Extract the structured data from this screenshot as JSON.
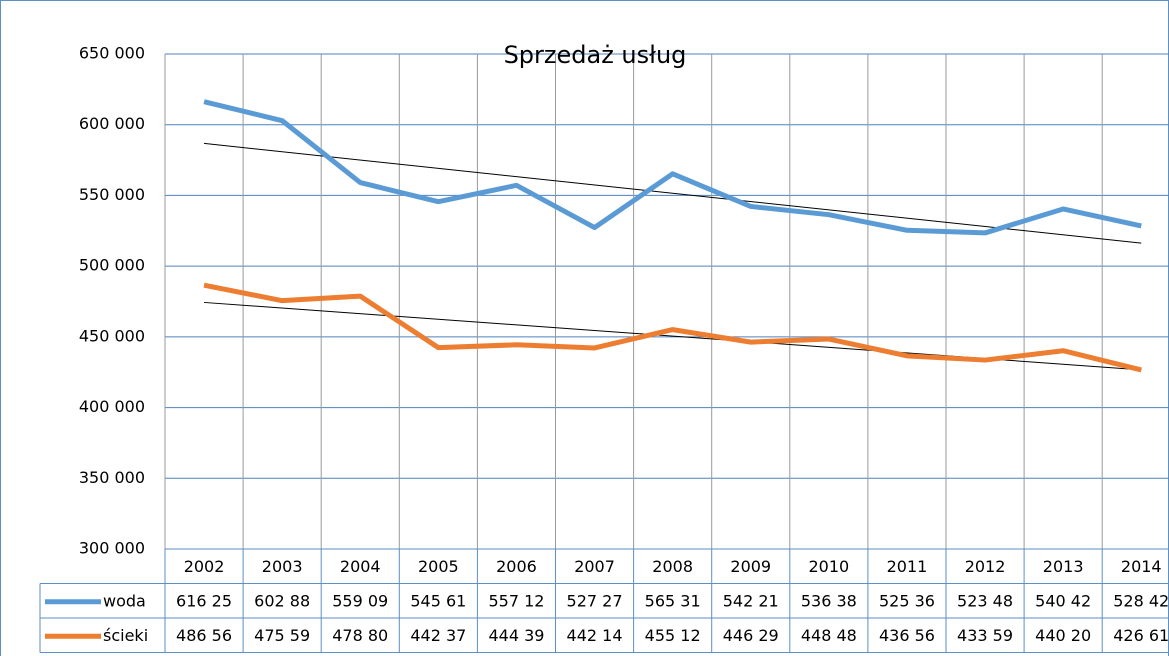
{
  "chart_data": {
    "type": "line",
    "title": "Sprzedaż usług",
    "categories": [
      "2002",
      "2003",
      "2004",
      "2005",
      "2006",
      "2007",
      "2008",
      "2009",
      "2010",
      "2011",
      "2012",
      "2013",
      "2014"
    ],
    "series": [
      {
        "name": "woda",
        "color": "#5b9bd5",
        "values": [
          616250,
          602880,
          559090,
          545610,
          557120,
          527270,
          565310,
          542210,
          536380,
          525360,
          523480,
          540420,
          528420
        ],
        "value_labels": [
          "616 25",
          "602 88",
          "559 09",
          "545 61",
          "557 12",
          "527 27",
          "565 31",
          "542 21",
          "536 38",
          "525 36",
          "523 48",
          "540 42",
          "528 42"
        ]
      },
      {
        "name": "ścieki",
        "color": "#ed7d31",
        "values": [
          486560,
          475590,
          478800,
          442370,
          444390,
          442140,
          455120,
          446290,
          448480,
          436560,
          433590,
          440200,
          426610
        ],
        "value_labels": [
          "486 56",
          "475 59",
          "478 80",
          "442 37",
          "444 39",
          "442 14",
          "455 12",
          "446 29",
          "448 48",
          "436 56",
          "433 59",
          "440 20",
          "426 61"
        ]
      }
    ],
    "ylim": [
      300000,
      650000
    ],
    "yticks": [
      {
        "value": 300000,
        "label": "300 000"
      },
      {
        "value": 350000,
        "label": "350 000"
      },
      {
        "value": 400000,
        "label": "400 000"
      },
      {
        "value": 450000,
        "label": "450 000"
      },
      {
        "value": 500000,
        "label": "500 000"
      },
      {
        "value": 550000,
        "label": "550 000"
      },
      {
        "value": 600000,
        "label": "600 000"
      },
      {
        "value": 650000,
        "label": "650 000"
      }
    ],
    "grid": true,
    "trendline": true,
    "data_table": true
  }
}
